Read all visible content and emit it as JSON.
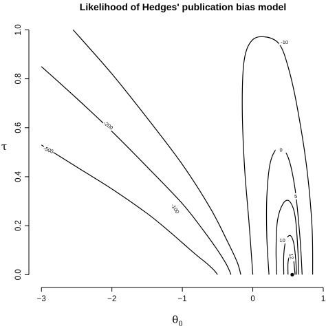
{
  "chart_data": {
    "type": "contour",
    "title": "Likelihood of Hedges' publication bias model",
    "xlabel": "θ",
    "xlabel_subscript": "0",
    "ylabel": "τ",
    "xlim": [
      -3.1,
      1.0
    ],
    "ylim": [
      -0.03,
      1.06
    ],
    "xticks": [
      "−3",
      "−2",
      "−1",
      "0",
      "1"
    ],
    "yticks": [
      "0.0",
      "0.2",
      "0.4",
      "0.6",
      "0.8",
      "1.0"
    ],
    "xtick_values": [
      -3,
      -2,
      -1,
      0,
      1
    ],
    "ytick_values": [
      0.0,
      0.2,
      0.4,
      0.6,
      0.8,
      1.0
    ],
    "grid": false,
    "maximum_point": {
      "x": 0.56,
      "y": 0.0
    },
    "contours": [
      {
        "level": "-500",
        "label_at": [
          -2.9,
          0.51
        ],
        "label_rot": 22,
        "points": [
          [
            -3.0,
            0.53
          ],
          [
            -2.5,
            0.44
          ],
          [
            -2.0,
            0.35
          ],
          [
            -1.5,
            0.25
          ],
          [
            -1.2,
            0.18
          ],
          [
            -1.0,
            0.13
          ],
          [
            -0.8,
            0.08
          ],
          [
            -0.65,
            0.045
          ],
          [
            -0.55,
            0.018
          ],
          [
            -0.5,
            0.0
          ]
        ]
      },
      {
        "level": "-200",
        "label_at": [
          -2.05,
          0.61
        ],
        "label_rot": 37,
        "points": [
          [
            -3.0,
            0.85
          ],
          [
            -2.5,
            0.72
          ],
          [
            -2.0,
            0.585
          ],
          [
            -1.5,
            0.44
          ],
          [
            -1.0,
            0.29
          ],
          [
            -0.7,
            0.18
          ],
          [
            -0.5,
            0.1
          ],
          [
            -0.38,
            0.045
          ],
          [
            -0.33,
            0.015
          ],
          [
            -0.31,
            0.0
          ]
        ]
      },
      {
        "level": "-100",
        "label_at": [
          -1.1,
          0.27
        ],
        "label_rot": 58,
        "points": [
          [
            -2.55,
            1.0
          ],
          [
            -2.0,
            0.82
          ],
          [
            -1.5,
            0.64
          ],
          [
            -1.0,
            0.45
          ],
          [
            -0.6,
            0.27
          ],
          [
            -0.35,
            0.13
          ],
          [
            -0.22,
            0.05
          ],
          [
            -0.17,
            0.0
          ]
        ]
      },
      {
        "level": "-10",
        "label_at": [
          0.45,
          0.95
        ],
        "label_rot": 0,
        "points": [
          [
            0.0,
            0.0
          ],
          [
            -0.05,
            0.2
          ],
          [
            -0.12,
            0.45
          ],
          [
            -0.15,
            0.7
          ],
          [
            -0.12,
            0.88
          ],
          [
            0.0,
            0.96
          ],
          [
            0.2,
            0.97
          ],
          [
            0.38,
            0.94
          ],
          [
            0.5,
            0.85
          ],
          [
            0.62,
            0.7
          ],
          [
            0.76,
            0.45
          ],
          [
            0.84,
            0.2
          ],
          [
            0.85,
            0.0
          ]
        ]
      },
      {
        "level": "0",
        "label_at": [
          0.4,
          0.51
        ],
        "label_rot": 0,
        "points": [
          [
            0.23,
            0.0
          ],
          [
            0.2,
            0.15
          ],
          [
            0.2,
            0.32
          ],
          [
            0.25,
            0.46
          ],
          [
            0.37,
            0.52
          ],
          [
            0.5,
            0.48
          ],
          [
            0.6,
            0.35
          ],
          [
            0.67,
            0.15
          ],
          [
            0.7,
            0.0
          ]
        ]
      },
      {
        "level": "5",
        "label_at": [
          0.61,
          0.32
        ],
        "label_rot": 0,
        "points": [
          [
            0.34,
            0.0
          ],
          [
            0.33,
            0.1
          ],
          [
            0.35,
            0.22
          ],
          [
            0.43,
            0.29
          ],
          [
            0.52,
            0.3
          ],
          [
            0.6,
            0.24
          ],
          [
            0.64,
            0.1
          ],
          [
            0.65,
            0.0
          ]
        ]
      },
      {
        "level": "10",
        "label_at": [
          0.42,
          0.14
        ],
        "label_rot": 0,
        "points": [
          [
            0.44,
            0.0
          ],
          [
            0.44,
            0.08
          ],
          [
            0.47,
            0.14
          ],
          [
            0.53,
            0.16
          ],
          [
            0.58,
            0.13
          ],
          [
            0.61,
            0.06
          ],
          [
            0.62,
            0.0
          ]
        ]
      },
      {
        "level": "12",
        "label_at": [
          0.55,
          0.075
        ],
        "label_rot": 80,
        "points": [
          [
            0.5,
            0.0
          ],
          [
            0.5,
            0.05
          ],
          [
            0.53,
            0.085
          ],
          [
            0.57,
            0.08
          ],
          [
            0.59,
            0.03
          ],
          [
            0.6,
            0.0
          ]
        ]
      }
    ]
  }
}
